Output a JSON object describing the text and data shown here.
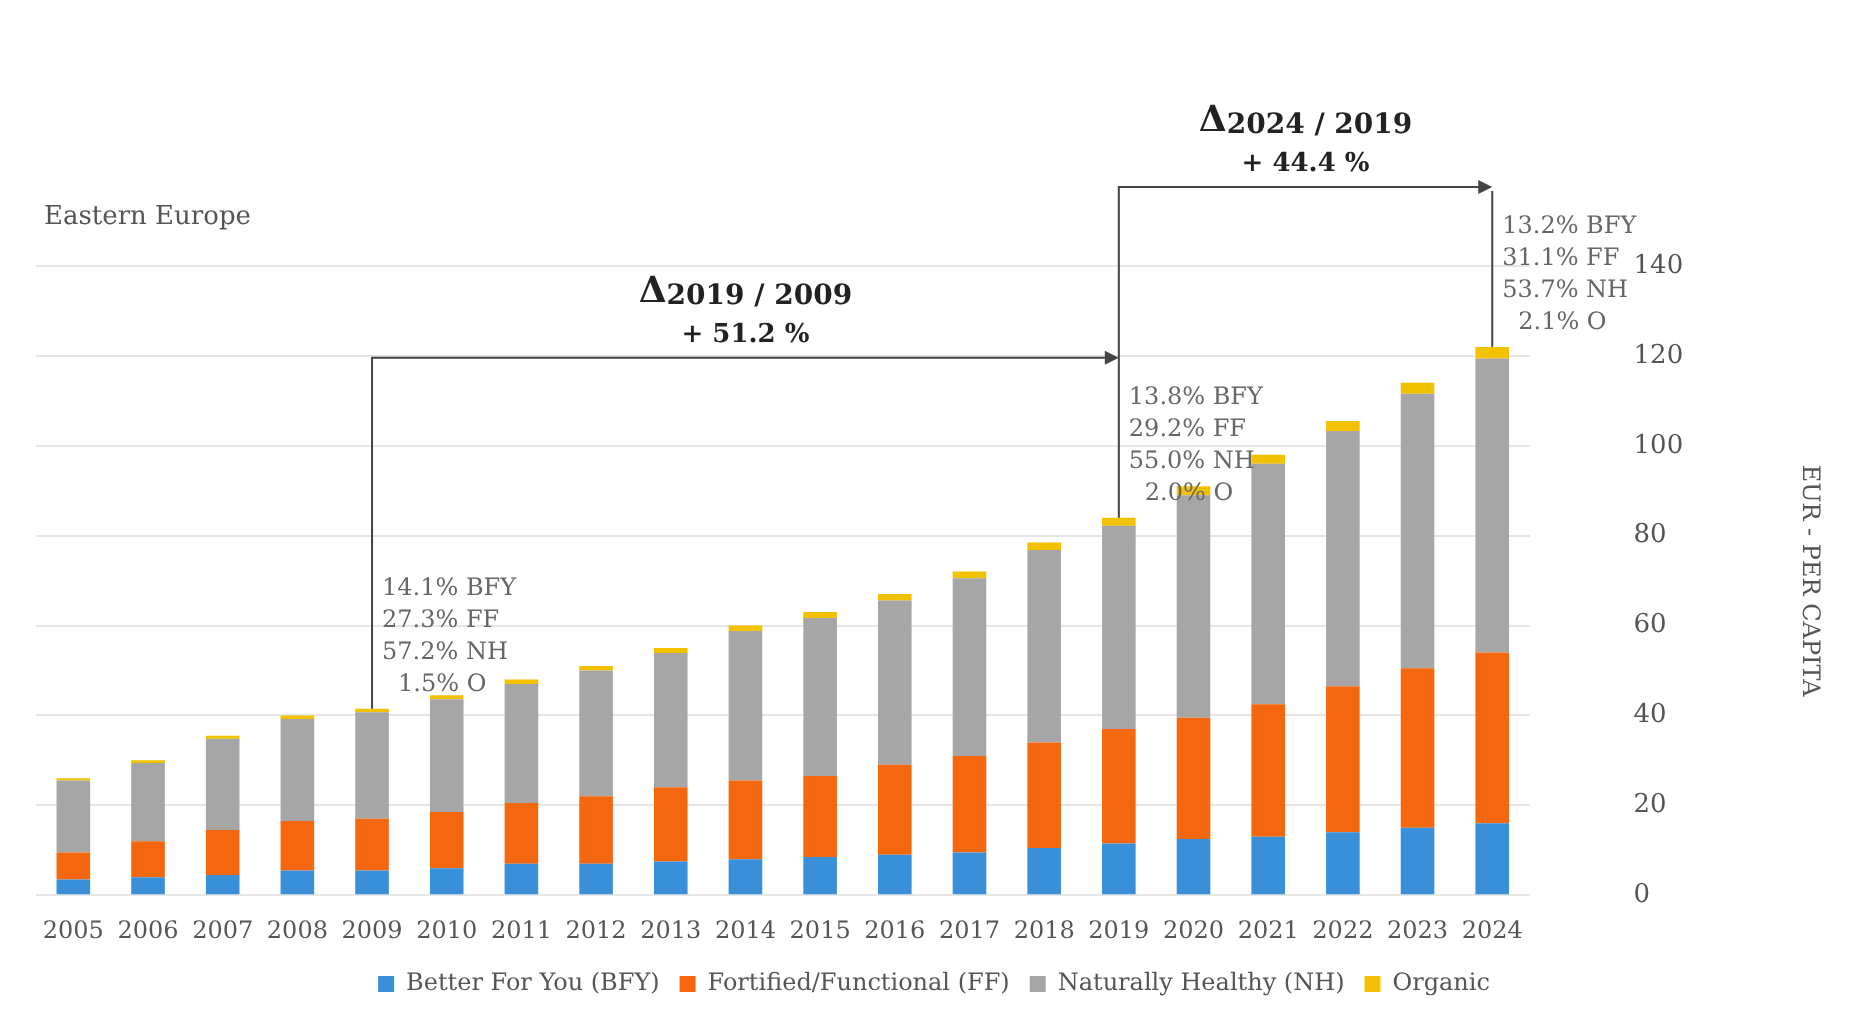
{
  "chart_data": {
    "type": "bar",
    "title": "Eastern Europe",
    "ylabel": "EUR - PER CAPITA",
    "stacked": true,
    "legend": "bottom",
    "grid": "y",
    "categories": [
      "2005",
      "2006",
      "2007",
      "2008",
      "2009",
      "2010",
      "2011",
      "2012",
      "2013",
      "2014",
      "2015",
      "2016",
      "2017",
      "2018",
      "2019",
      "2020",
      "2021",
      "2022",
      "2023",
      "2024"
    ],
    "series": [
      {
        "name": "Better For You (BFY)",
        "color": "#3a8fd9",
        "values": [
          3.5,
          4,
          4.5,
          5.5,
          5.5,
          6,
          7,
          7,
          7.5,
          8,
          8.5,
          9,
          9.5,
          10.5,
          11.5,
          12.5,
          13,
          14,
          15,
          16
        ]
      },
      {
        "name": "Fortified/Functional (FF)",
        "color": "#f5670f",
        "values": [
          6,
          8,
          10,
          11,
          11.5,
          12.5,
          13.5,
          15,
          16.5,
          17.5,
          18,
          20,
          21.5,
          23.5,
          25.5,
          27,
          29.5,
          32.5,
          35.5,
          38
        ]
      },
      {
        "name": "Naturally Healthy (NH)",
        "color": "#a6a6a6",
        "values": [
          16,
          17.4,
          20.3,
          22.7,
          23.7,
          25.1,
          26.5,
          28,
          29.9,
          33.3,
          35.2,
          36.6,
          39.5,
          42.8,
          45.2,
          49.5,
          53.5,
          56.8,
          61.1,
          65.4
        ]
      },
      {
        "name": "Organic",
        "color": "#f2c200",
        "values": [
          0.5,
          0.6,
          0.7,
          0.8,
          0.8,
          0.9,
          1,
          1,
          1.1,
          1.2,
          1.3,
          1.4,
          1.5,
          1.7,
          1.8,
          2,
          2,
          2.2,
          2.4,
          2.6
        ]
      }
    ],
    "ylim": [
      0,
      140
    ],
    "yticks": [
      0,
      20,
      40,
      60,
      80,
      100,
      120,
      140
    ],
    "annotations": [
      {
        "text": "14.1% BFY\n27.3% FF\n57.2% NH\n1.5% O",
        "x": "2009",
        "y": 41.5
      },
      {
        "text": "13.8% BFY\n29.2% FF\n55.0% NH\n2.0% O",
        "x": "2019",
        "y": 84
      },
      {
        "text": "13.2% BFY\n31.1% FF\n53.7% NH\n2.1% O",
        "x": "2024",
        "y": 122
      },
      "Δ$_{2019 / 2009}$\n+ 51.2 %",
      "Δ$_{2024 / 2019}$\n+ 44.4 %"
    ]
  }
}
